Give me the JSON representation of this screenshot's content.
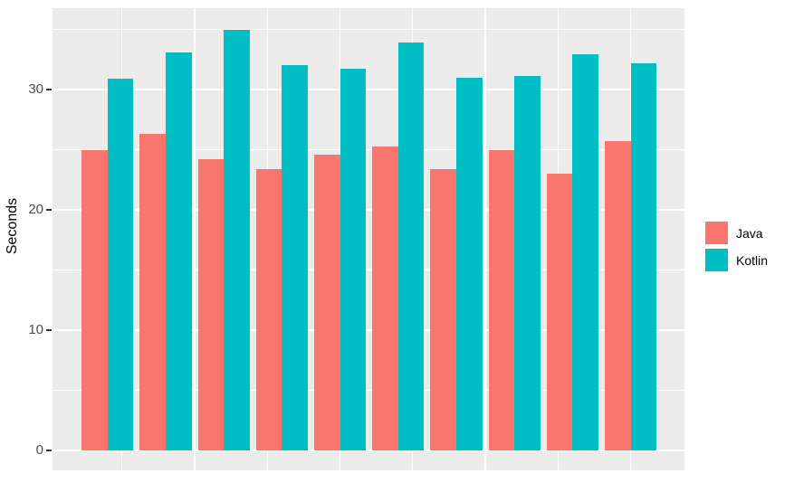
{
  "chart_data": {
    "type": "bar",
    "title": "",
    "xlabel": "",
    "ylabel": "Seconds",
    "n_groups": 10,
    "x_tick_labels_visible": false,
    "series": [
      {
        "name": "Java",
        "color": "#F8766D",
        "values": [
          25.0,
          26.3,
          24.2,
          23.4,
          24.6,
          25.3,
          23.4,
          25.0,
          23.0,
          25.7
        ]
      },
      {
        "name": "Kotlin",
        "color": "#00BFC4",
        "values": [
          30.9,
          33.1,
          35.0,
          32.0,
          31.7,
          33.9,
          31.0,
          31.1,
          32.9,
          32.2
        ]
      }
    ],
    "ylim": [
      -2.1,
      37.0
    ],
    "yticks": [
      0,
      10,
      20,
      30
    ],
    "y_minor_gridlines": [
      5,
      15,
      25,
      35
    ],
    "x_major_gridlines_u": [
      2.5,
      5.0,
      7.5,
      10.0
    ],
    "x_minor_gridlines_u": [
      1.25,
      3.75,
      6.25,
      8.75
    ],
    "legend_position": "right",
    "grid": true,
    "panel_bg": "#EBEBEB",
    "grid_color": "#FFFFFF",
    "tick_color": "#333333",
    "tick_label_color": "#4D4D4D",
    "axis_title_color": "#000000"
  }
}
